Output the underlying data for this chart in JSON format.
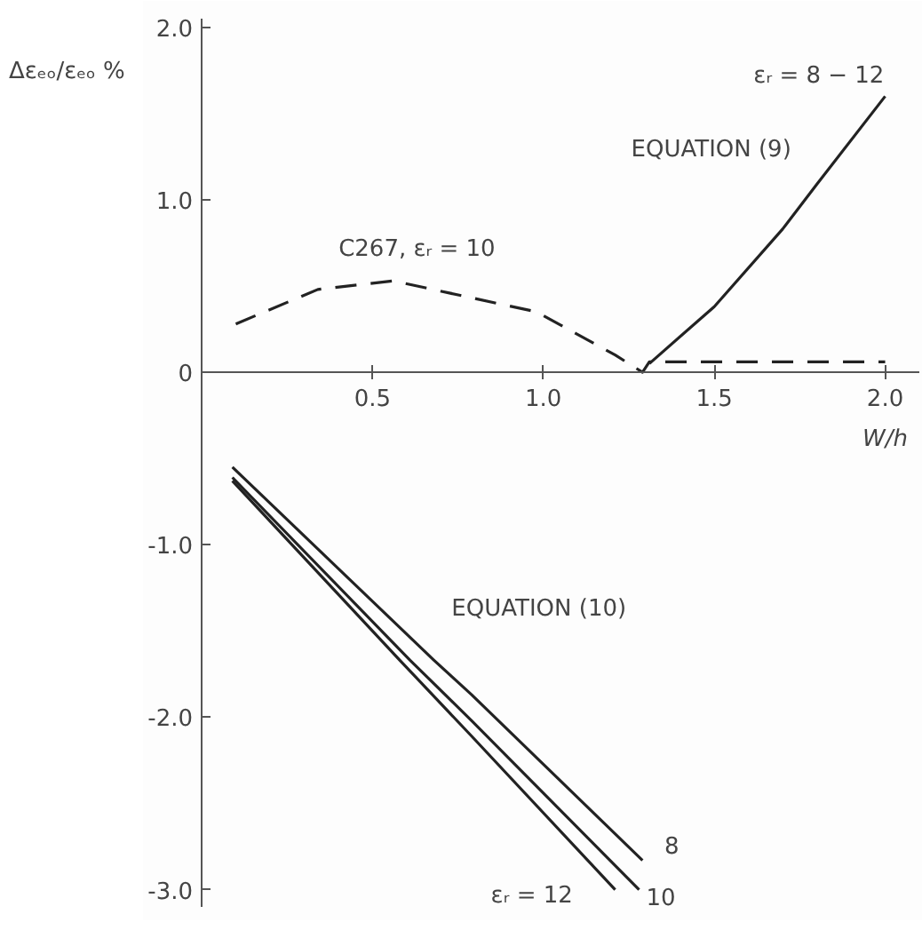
{
  "chart_data": {
    "type": "line",
    "xlabel": "W/h",
    "ylabel": "Δεₑₒ/εₑₒ %",
    "xlim": [
      0,
      2.1
    ],
    "ylim": [
      -3.1,
      2.05
    ],
    "xticks": [
      0.5,
      {
        "value": 1,
        "label": "1.0"
      },
      1.5,
      {
        "value": 2,
        "label": "2.0"
      }
    ],
    "yticks": [
      {
        "value": 2,
        "label": "2.0"
      },
      {
        "value": 1,
        "label": "1.0"
      },
      0,
      {
        "value": -1,
        "label": "-1.0"
      },
      {
        "value": -2,
        "label": "-2.0"
      },
      {
        "value": -3,
        "label": "-3.0"
      }
    ],
    "grid": false,
    "series": [
      {
        "color": "#222222",
        "line_style": "dashed",
        "x": [
          0.1,
          0.34,
          0.56,
          0.98,
          1.21,
          1.29,
          1.31,
          2.0
        ],
        "values": [
          0.28,
          0.48,
          0.53,
          0.35,
          0.1,
          0,
          0.06,
          0.06
        ]
      },
      {
        "color": "#222222",
        "line_style": "solid",
        "x": [
          1.31,
          1.5,
          1.7,
          1.8,
          2.0
        ],
        "values": [
          0.05,
          0.38,
          0.83,
          1.09,
          1.6
        ]
      },
      {
        "color": "#222222",
        "line_style": "solid",
        "x": [
          0.09,
          0.68,
          0.79,
          1.29
        ],
        "values": [
          -0.55,
          -1.67,
          -1.87,
          -2.83
        ]
      },
      {
        "color": "#222222",
        "line_style": "solid",
        "x": [
          0.09,
          0.61,
          0.79,
          1.28
        ],
        "values": [
          -0.61,
          -1.67,
          -2.02,
          -3.0
        ]
      },
      {
        "color": "#222222",
        "line_style": "solid",
        "x": [
          0.09,
          0.58,
          0.79,
          1.21
        ],
        "values": [
          -0.63,
          -1.67,
          -2.11,
          -3.0
        ]
      }
    ],
    "annotations": [
      "C267, εᵣ = 10",
      "EQUATION (9)",
      "εᵣ = 8 − 12",
      "EQUATION (10)",
      "8",
      "10",
      "εᵣ = 12"
    ]
  }
}
